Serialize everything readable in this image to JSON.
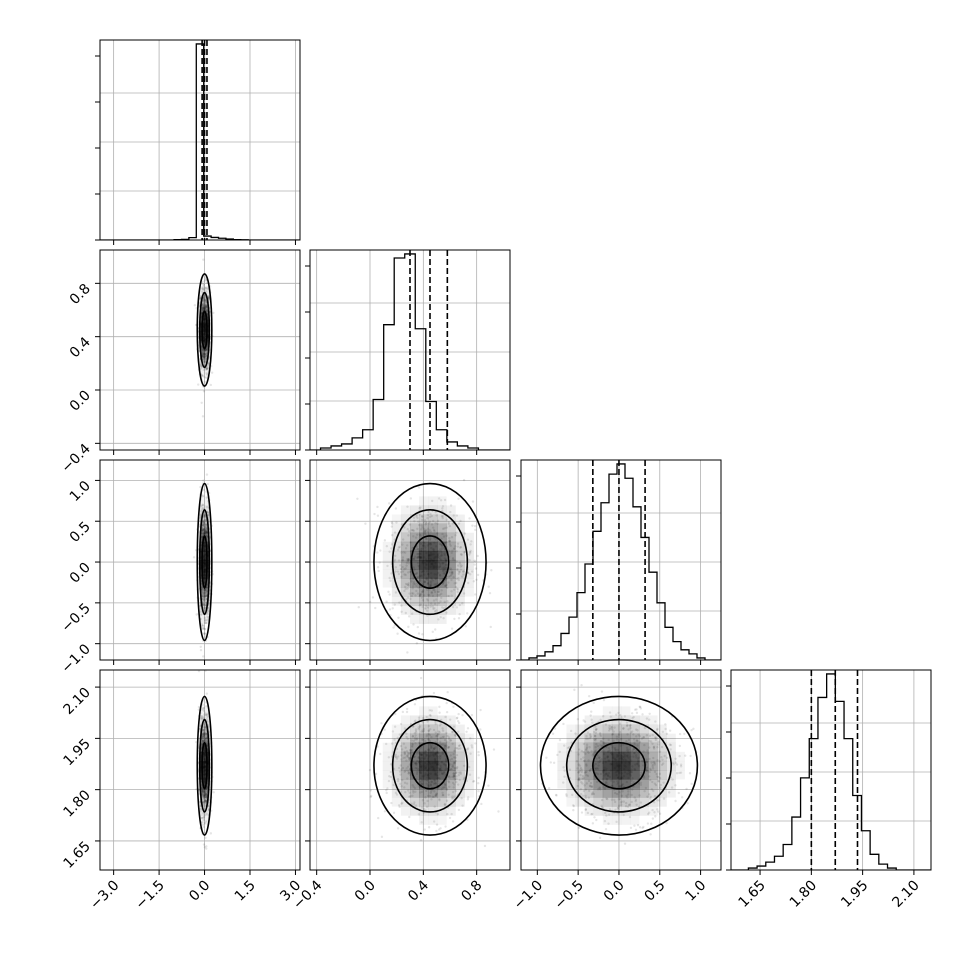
{
  "chart_data": {
    "type": "corner",
    "parameters": [
      {
        "ticks": [
          -3.0,
          -1.5,
          0.0,
          1.5,
          3.0
        ],
        "tick_labels": [
          "−3.0",
          "−1.5",
          "0.0",
          "1.5",
          "3.0"
        ],
        "range": [
          -3.45,
          3.15
        ],
        "quantiles": [
          -0.08,
          0.0,
          0.08
        ],
        "hist_counts": [
          0,
          0,
          0,
          0,
          0,
          0,
          0,
          0,
          0,
          0,
          2,
          3,
          12,
          1000,
          20,
          13,
          9,
          5,
          2,
          1,
          0,
          0,
          0,
          0,
          0,
          0,
          0
        ]
      },
      {
        "ticks": [
          -0.4,
          0.0,
          0.4,
          0.8
        ],
        "tick_labels": [
          "−0.4",
          "0.0",
          "0.4",
          "0.8"
        ],
        "range": [
          -0.45,
          1.05
        ],
        "quantiles": [
          0.3,
          0.45,
          0.58
        ],
        "hist_counts": [
          0,
          1,
          2,
          3,
          6,
          10,
          25,
          62,
          95,
          97,
          60,
          24,
          10,
          4,
          2,
          1,
          0,
          0,
          0
        ]
      },
      {
        "ticks": [
          -1.0,
          -0.5,
          0.0,
          0.5,
          1.0
        ],
        "tick_labels": [
          "−1.0",
          "−0.5",
          "0.0",
          "0.5",
          "1.0"
        ],
        "range": [
          -1.2,
          1.25
        ],
        "quantiles": [
          -0.32,
          0.0,
          0.32
        ],
        "hist_counts": [
          0,
          1,
          2,
          4,
          7,
          13,
          21,
          33,
          47,
          63,
          77,
          91,
          96,
          89,
          75,
          60,
          43,
          28,
          16,
          9,
          5,
          3,
          1,
          0,
          0
        ]
      },
      {
        "ticks": [
          1.65,
          1.8,
          1.95,
          2.1
        ],
        "tick_labels": [
          "1.65",
          "1.80",
          "1.95",
          "2.10"
        ],
        "range": [
          1.565,
          2.15
        ],
        "quantiles": [
          1.8,
          1.87,
          1.935
        ],
        "hist_counts": [
          0,
          0,
          1,
          2,
          4,
          7,
          13,
          27,
          47,
          67,
          88,
          100,
          86,
          67,
          38,
          20,
          8,
          3,
          1,
          0,
          0,
          0,
          0
        ]
      }
    ],
    "correlations": [
      [
        null,
        null,
        null,
        null
      ],
      [
        0.0,
        null,
        null,
        null
      ],
      [
        0.0,
        0.0,
        null,
        null
      ],
      [
        0.0,
        0.0,
        0.0,
        null
      ]
    ],
    "contour_levels": [
      0.393,
      0.865,
      0.989
    ],
    "grid": true,
    "colors": {
      "points": "#000000",
      "lines": "#000000",
      "density": "#000000",
      "grid": "#b0b0b0"
    }
  }
}
